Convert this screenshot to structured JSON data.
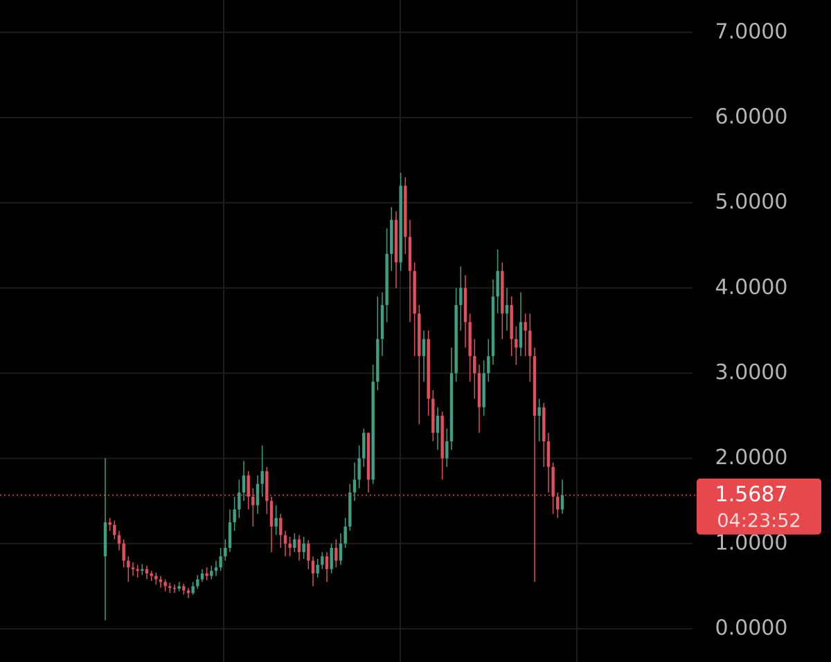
{
  "chart_data": {
    "type": "candlestick",
    "up_color": "#3e9f85",
    "down_color": "#e0505b",
    "grid": true,
    "ylim": [
      -0.39,
      7.38
    ],
    "yticks": [
      {
        "value": 0,
        "label": "0.0000"
      },
      {
        "value": 1,
        "label": "1.0000"
      },
      {
        "value": 2,
        "label": "2.0000"
      },
      {
        "value": 3,
        "label": "3.0000"
      },
      {
        "value": 4,
        "label": "4.0000"
      },
      {
        "value": 5,
        "label": "5.0000"
      },
      {
        "value": 6,
        "label": "6.0000"
      },
      {
        "value": 7,
        "label": "7.0000"
      }
    ],
    "last_price": 1.5687,
    "last_price_color": "#e5484d",
    "countdown": "04:23:52",
    "open": [
      0.85,
      1.25,
      1.22,
      1.1,
      1.0,
      0.8,
      0.72,
      0.7,
      0.68,
      0.7,
      0.65,
      0.62,
      0.58,
      0.55,
      0.5,
      0.48,
      0.47,
      0.5,
      0.45,
      0.42,
      0.5,
      0.58,
      0.65,
      0.62,
      0.68,
      0.72,
      0.85,
      0.95,
      1.25,
      1.4,
      1.6,
      1.8,
      1.55,
      1.45,
      1.7,
      1.85,
      1.5,
      1.2,
      1.3,
      1.1,
      1.0,
      0.95,
      1.05,
      0.9,
      1.0,
      0.8,
      0.65,
      0.75,
      0.85,
      0.7,
      0.95,
      0.8,
      1.0,
      1.2,
      1.6,
      1.75,
      2.0,
      2.3,
      1.75,
      2.9,
      3.4,
      3.8,
      4.4,
      4.8,
      4.3,
      5.2,
      4.6,
      4.2,
      3.7,
      3.2,
      3.4,
      2.7,
      2.3,
      2.5,
      2.0,
      2.2,
      3.0,
      3.8,
      4.0,
      3.6,
      3.2,
      3.0,
      2.6,
      3.0,
      3.2,
      3.9,
      4.2,
      3.7,
      3.8,
      3.4,
      3.3,
      3.6,
      3.5,
      3.2,
      2.5,
      2.6,
      2.2,
      1.9,
      1.55,
      1.4
    ],
    "high": [
      2.0,
      1.3,
      1.27,
      1.15,
      1.05,
      0.85,
      0.78,
      0.75,
      0.76,
      0.74,
      0.68,
      0.66,
      0.62,
      0.58,
      0.54,
      0.52,
      0.55,
      0.53,
      0.48,
      0.55,
      0.63,
      0.7,
      0.72,
      0.74,
      0.8,
      0.95,
      1.05,
      1.4,
      1.55,
      1.75,
      1.97,
      1.85,
      1.65,
      1.8,
      2.15,
      1.9,
      1.55,
      1.45,
      1.35,
      1.15,
      1.08,
      1.12,
      1.1,
      1.08,
      1.04,
      0.85,
      0.82,
      0.9,
      0.9,
      1.0,
      1.05,
      1.12,
      1.3,
      1.7,
      1.95,
      2.15,
      2.35,
      2.3,
      3.1,
      3.9,
      3.95,
      4.7,
      4.95,
      4.9,
      5.35,
      5.3,
      4.8,
      4.3,
      3.8,
      3.5,
      3.5,
      2.8,
      2.6,
      2.55,
      2.35,
      3.3,
      4.0,
      4.25,
      4.15,
      3.7,
      3.4,
      3.1,
      3.15,
      3.4,
      4.1,
      4.45,
      4.3,
      4.0,
      3.9,
      3.55,
      3.95,
      3.7,
      3.7,
      3.3,
      2.7,
      2.65,
      2.3,
      1.95,
      1.6,
      1.75
    ],
    "low": [
      0.1,
      1.15,
      1.05,
      0.92,
      0.72,
      0.55,
      0.62,
      0.6,
      0.63,
      0.58,
      0.56,
      0.52,
      0.48,
      0.44,
      0.42,
      0.42,
      0.44,
      0.4,
      0.36,
      0.4,
      0.47,
      0.55,
      0.57,
      0.58,
      0.62,
      0.68,
      0.8,
      0.9,
      1.15,
      1.3,
      1.5,
      1.4,
      1.2,
      1.35,
      1.55,
      1.35,
      0.9,
      1.1,
      0.95,
      0.85,
      0.85,
      0.9,
      0.8,
      0.82,
      0.7,
      0.5,
      0.6,
      0.7,
      0.55,
      0.65,
      0.72,
      0.75,
      0.95,
      1.15,
      1.5,
      1.65,
      1.9,
      1.6,
      1.7,
      2.8,
      3.2,
      3.6,
      4.2,
      4.0,
      4.2,
      4.4,
      3.6,
      3.2,
      2.4,
      2.9,
      2.5,
      2.2,
      2.1,
      1.75,
      1.9,
      2.1,
      2.9,
      3.5,
      3.3,
      2.9,
      2.7,
      2.3,
      2.5,
      2.9,
      3.1,
      3.7,
      3.4,
      3.5,
      3.2,
      3.1,
      3.2,
      3.2,
      2.9,
      0.55,
      2.2,
      1.9,
      1.6,
      1.35,
      1.3,
      1.35
    ],
    "close": [
      1.25,
      1.22,
      1.1,
      1.0,
      0.8,
      0.72,
      0.7,
      0.68,
      0.7,
      0.65,
      0.62,
      0.58,
      0.55,
      0.5,
      0.48,
      0.47,
      0.5,
      0.45,
      0.42,
      0.5,
      0.58,
      0.65,
      0.62,
      0.68,
      0.72,
      0.85,
      0.95,
      1.25,
      1.4,
      1.6,
      1.8,
      1.55,
      1.45,
      1.7,
      1.85,
      1.5,
      1.2,
      1.3,
      1.1,
      1.0,
      0.95,
      1.05,
      0.9,
      1.0,
      0.8,
      0.65,
      0.75,
      0.85,
      0.7,
      0.95,
      0.8,
      1.0,
      1.2,
      1.6,
      1.75,
      2.0,
      2.3,
      1.75,
      2.9,
      3.4,
      3.8,
      4.4,
      4.8,
      4.3,
      5.2,
      4.6,
      4.2,
      3.7,
      3.2,
      3.4,
      2.7,
      2.3,
      2.5,
      2.0,
      2.2,
      3.0,
      3.8,
      4.0,
      3.6,
      3.2,
      3.0,
      2.6,
      3.0,
      3.2,
      3.9,
      4.2,
      3.7,
      3.8,
      3.4,
      3.3,
      3.6,
      3.5,
      3.2,
      2.5,
      2.6,
      2.2,
      1.9,
      1.55,
      1.4,
      1.5687
    ]
  }
}
